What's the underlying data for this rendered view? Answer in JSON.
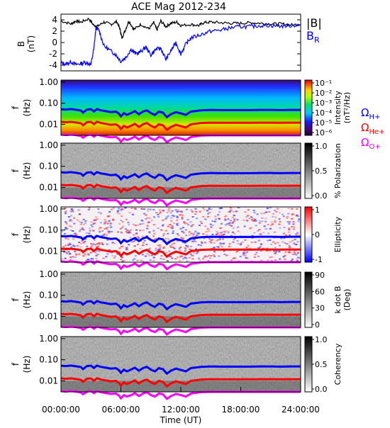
{
  "title": "ACE Mag 2012-234",
  "colors": {
    "B_total": "#000000",
    "B_R": "#0000ff",
    "H_gyro": "#0000ff",
    "He_gyro": "#ff0000",
    "O_gyro": "#ff00ff"
  },
  "chart_data": [
    {
      "type": "line",
      "panel": "magnetic field",
      "ylabel": "B (nT)",
      "ylim": [
        -5,
        5
      ],
      "ytick_labels": [
        "4",
        "2",
        "0",
        "-2",
        "-4"
      ],
      "xlim_hours": [
        0,
        24
      ],
      "legend": [
        "|B|",
        "B_R"
      ],
      "legend_placement": "right",
      "series": [
        {
          "name": "|B|",
          "color": "#000000",
          "x_hours": [
            0,
            1,
            1.5,
            2,
            2.8,
            3.3,
            3.7,
            4.3,
            5,
            5.6,
            5.9,
            6.1,
            6.4,
            6.8,
            7.3,
            8,
            8.8,
            9.3,
            9.6,
            10,
            10.5,
            11,
            11.6,
            12,
            13,
            13.8,
            14.3,
            15,
            16,
            17,
            18,
            19,
            20,
            21,
            22,
            23,
            24
          ],
          "values": [
            3.8,
            3.3,
            3.8,
            3.6,
            4.2,
            3.0,
            2.9,
            3.6,
            3.2,
            3.7,
            2.4,
            0.8,
            2.0,
            3.8,
            2.3,
            3.2,
            2.4,
            3.5,
            2.2,
            3.8,
            2.8,
            3.4,
            3.6,
            3.0,
            3.2,
            3.0,
            3.5,
            3.6,
            3.5,
            3.4,
            3.4,
            3.5,
            3.4,
            3.3,
            3.3,
            3.1,
            3.2
          ]
        },
        {
          "name": "B_R",
          "color": "#0000ff",
          "x_hours": [
            0,
            0.5,
            1,
            1.5,
            2,
            2.5,
            3,
            3.3,
            3.5,
            3.8,
            4.3,
            5,
            5.5,
            6,
            6.5,
            7,
            7.5,
            8,
            8.5,
            9,
            9.5,
            10,
            10.5,
            11,
            11.5,
            12,
            12.5,
            13,
            14,
            15,
            16,
            17,
            18,
            19,
            20,
            21,
            22,
            23,
            24
          ],
          "values": [
            -3.6,
            -3.8,
            -3.4,
            -3.9,
            -3.7,
            -3.5,
            -3.9,
            -1.0,
            2.6,
            2.2,
            -0.6,
            -1.5,
            -2.2,
            -3.3,
            -2.6,
            -1.2,
            -2.0,
            -1.6,
            -0.8,
            -2.2,
            -1.2,
            -1.0,
            -3.0,
            -1.5,
            0.0,
            -2.0,
            -0.3,
            0.8,
            1.4,
            2.0,
            2.2,
            2.6,
            2.8,
            2.8,
            3.0,
            3.0,
            2.9,
            3.0,
            3.1
          ]
        }
      ]
    },
    {
      "type": "heatmap",
      "panel": "intensity",
      "ylabel": "f (Hz)",
      "ytick_labels": [
        "1.00",
        "0.10",
        "0.01"
      ],
      "yscale": "log",
      "colorbar_label": "Intensity (nT²/Hz)",
      "colorbar_ticks": [
        "10⁻¹",
        "10⁻²",
        "10⁻³",
        "10⁻⁴",
        "10⁻⁵",
        "10⁻⁶"
      ],
      "colormap": "rainbow",
      "legend": [
        "ΩH+",
        "ΩHe+",
        "ΩO+"
      ],
      "legend_placement": "right"
    },
    {
      "type": "heatmap",
      "panel": "polarization",
      "ylabel": "f (Hz)",
      "ytick_labels": [
        "1.00",
        "0.10",
        "0.01"
      ],
      "yscale": "log",
      "colorbar_label": "% Polarization",
      "colorbar_ticks": [
        "1.0",
        "0.5",
        "0.0"
      ],
      "colormap": "grayscale"
    },
    {
      "type": "heatmap",
      "panel": "ellipticity",
      "ylabel": "f (Hz)",
      "ytick_labels": [
        "1.00",
        "0.10",
        "0.01"
      ],
      "yscale": "log",
      "colorbar_label": "Ellipticity",
      "colorbar_ticks": [
        "1",
        "0",
        "-1"
      ],
      "colormap": "blue-white-red"
    },
    {
      "type": "heatmap",
      "panel": "k dot B",
      "ylabel": "f (Hz)",
      "ytick_labels": [
        "1.00",
        "0.10",
        "0.01"
      ],
      "yscale": "log",
      "colorbar_label": "k dot B (Deg)",
      "colorbar_ticks": [
        "90",
        "60",
        "30",
        "0"
      ],
      "colormap": "grayscale"
    },
    {
      "type": "heatmap",
      "panel": "coherency",
      "ylabel": "f (Hz)",
      "ytick_labels": [
        "1.00",
        "0.10",
        "0.01"
      ],
      "yscale": "log",
      "colorbar_label": "Coherency",
      "colorbar_ticks": [
        "1.0",
        "0.5",
        "0.0"
      ],
      "colormap": "grayscale"
    }
  ],
  "gyro_lines": {
    "x_hours": [
      0,
      0.5,
      1,
      1.5,
      2,
      2.2,
      2.6,
      3,
      3.3,
      3.6,
      4,
      4.5,
      5,
      5.5,
      5.8,
      6,
      6.3,
      6.6,
      7,
      7.4,
      7.8,
      8.2,
      8.6,
      9,
      9.4,
      9.8,
      10.2,
      10.6,
      11,
      11.5,
      12,
      12.5,
      13,
      14,
      15,
      16,
      17,
      18,
      19,
      20,
      21,
      22,
      23,
      24
    ],
    "H_plus_hz": [
      0.052,
      0.05,
      0.053,
      0.049,
      0.045,
      0.036,
      0.05,
      0.052,
      0.041,
      0.053,
      0.046,
      0.042,
      0.038,
      0.04,
      0.032,
      0.024,
      0.034,
      0.028,
      0.034,
      0.042,
      0.03,
      0.04,
      0.046,
      0.034,
      0.028,
      0.04,
      0.036,
      0.022,
      0.03,
      0.038,
      0.033,
      0.028,
      0.04,
      0.046,
      0.048,
      0.047,
      0.047,
      0.047,
      0.047,
      0.048,
      0.048,
      0.047,
      0.048,
      0.048
    ],
    "He_plus_hz": [
      0.013,
      0.0125,
      0.013,
      0.0122,
      0.0112,
      0.009,
      0.0125,
      0.013,
      0.0102,
      0.0132,
      0.0115,
      0.0105,
      0.0095,
      0.01,
      0.008,
      0.006,
      0.0085,
      0.007,
      0.0085,
      0.0105,
      0.0075,
      0.01,
      0.0115,
      0.0085,
      0.007,
      0.01,
      0.009,
      0.0055,
      0.0075,
      0.0095,
      0.0082,
      0.007,
      0.01,
      0.0115,
      0.012,
      0.0118,
      0.0118,
      0.0118,
      0.0118,
      0.012,
      0.012,
      0.0118,
      0.012,
      0.012
    ],
    "O_plus_hz": [
      0.0033,
      0.0031,
      0.0033,
      0.0031,
      0.0028,
      0.0023,
      0.0031,
      0.0033,
      0.0026,
      0.0033,
      0.0029,
      0.0026,
      0.0024,
      0.0025,
      0.002,
      0.0015,
      0.0021,
      0.0018,
      0.0021,
      0.0026,
      0.0019,
      0.0025,
      0.0029,
      0.0021,
      0.0018,
      0.0025,
      0.0023,
      0.0014,
      0.0019,
      0.0024,
      0.0021,
      0.0018,
      0.0025,
      0.0029,
      0.003,
      0.003,
      0.003,
      0.003,
      0.003,
      0.003,
      0.003,
      0.003,
      0.003,
      0.003
    ]
  },
  "x_axis": {
    "label": "Time (UT)",
    "tick_labels": [
      "00:00:00",
      "06:00:00",
      "12:00:00",
      "18:00:00",
      "24:00:00"
    ],
    "tick_hours": [
      0,
      6,
      12,
      18,
      24
    ]
  },
  "labels": {
    "B_axis_line1": "B",
    "B_axis_line2": "(nT)",
    "f_line1": "f",
    "f_line2": "(Hz)",
    "legend_B": "|B|",
    "legend_BR": "B",
    "legend_BR_sub": "R",
    "omega": "Ω",
    "H_sub": "H+",
    "He_sub": "He+",
    "O_sub": "O+",
    "intensity_l1": "Intensity",
    "intensity_l2": "(nT²/Hz)",
    "polarization": "% Polarization",
    "ellipticity": "Ellipticity",
    "kdotb_l1": "k dot B",
    "kdotb_l2": "(Deg)",
    "coherency": "Coherency"
  }
}
